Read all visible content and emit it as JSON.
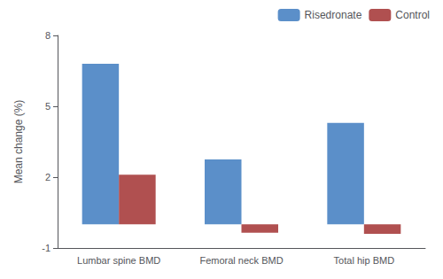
{
  "chart_data": {
    "type": "bar",
    "categories": [
      "Lumbar spine BMD",
      "Femoral neck BMD",
      "Total hip BMD"
    ],
    "series": [
      {
        "name": "Risedronate",
        "color": "#5b8fc9",
        "values": [
          6.8,
          2.75,
          4.3
        ]
      },
      {
        "name": "Control",
        "color": "#b05050",
        "values": [
          2.1,
          -0.35,
          -0.4
        ]
      }
    ],
    "ylabel": "Mean change (%)",
    "ylim": [
      -1,
      8
    ],
    "yticks": [
      -1,
      2,
      5,
      8
    ],
    "grid": false,
    "legend": "upper right"
  }
}
